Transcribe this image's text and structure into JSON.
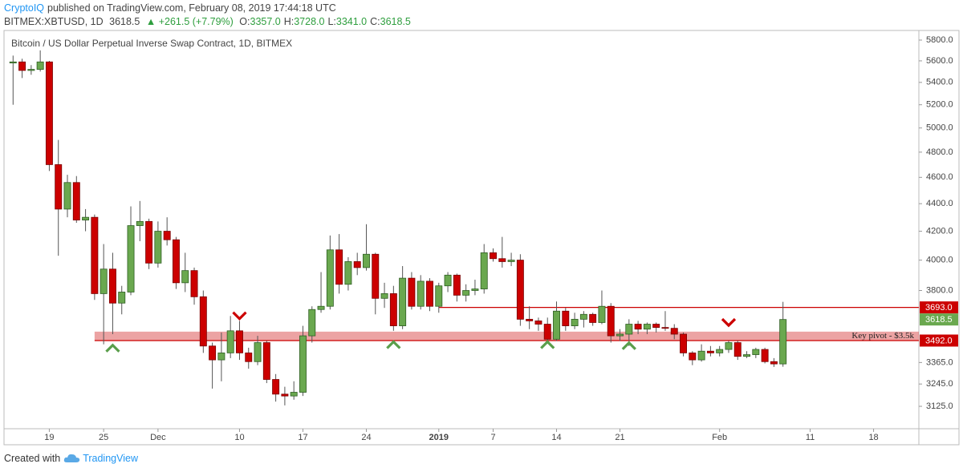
{
  "header": {
    "author": "CryptoIQ",
    "published": "published on TradingView.com, February 08, 2019 17:44:18 UTC",
    "symbol": "BITMEX:XBTUSD, 1D",
    "last": "3618.5",
    "change": "▲ +261.5 (+7.79%)",
    "ohlc": [
      {
        "label": "O:",
        "value": "3357.0"
      },
      {
        "label": "H:",
        "value": "3728.0"
      },
      {
        "label": "L:",
        "value": "3341.0"
      },
      {
        "label": "C:",
        "value": "3618.5"
      }
    ]
  },
  "footer": {
    "text": "Created with",
    "brand": "TradingView"
  },
  "chart_data": {
    "type": "candlestick",
    "title": "Bitcoin / US Dollar Perpetual Inverse Swap Contract, 1D, BITMEX",
    "up_color": "#6aa84f",
    "down_color": "#cc0000",
    "up_border": "#2f5e23",
    "down_border": "#7a0000",
    "log": true,
    "ylim": [
      3009,
      5895
    ],
    "yticks": [
      {
        "value": 3125,
        "label": "3125.0"
      },
      {
        "value": 3245,
        "label": "3245.0"
      },
      {
        "value": 3365,
        "label": "3365.0"
      },
      {
        "value": 3800,
        "label": "3800.0"
      },
      {
        "value": 4000,
        "label": "4000.0"
      },
      {
        "value": 4200,
        "label": "4200.0"
      },
      {
        "value": 4400,
        "label": "4400.0"
      },
      {
        "value": 4600,
        "label": "4600.0"
      },
      {
        "value": 4800,
        "label": "4800.0"
      },
      {
        "value": 5000,
        "label": "5000.0"
      },
      {
        "value": 5200,
        "label": "5200.0"
      },
      {
        "value": 5400,
        "label": "5400.0"
      },
      {
        "value": 5600,
        "label": "5600.0"
      },
      {
        "value": 5800,
        "label": "5800.0"
      }
    ],
    "xlim": [
      "2018-11-14",
      "2019-02-23"
    ],
    "xticks": [
      {
        "value": "2018-11-19",
        "label": "19"
      },
      {
        "value": "2018-11-25",
        "label": "25"
      },
      {
        "value": "2018-12-01",
        "label": "Dec"
      },
      {
        "value": "2018-12-10",
        "label": "10"
      },
      {
        "value": "2018-12-17",
        "label": "17"
      },
      {
        "value": "2018-12-24",
        "label": "24"
      },
      {
        "value": "2019-01-01",
        "label": "2019"
      },
      {
        "value": "2019-01-07",
        "label": "7"
      },
      {
        "value": "2019-01-14",
        "label": "14"
      },
      {
        "value": "2019-01-21",
        "label": "21"
      },
      {
        "value": "2019-02-01",
        "label": "Feb"
      },
      {
        "value": "2019-02-11",
        "label": "11"
      },
      {
        "value": "2019-02-18",
        "label": "18"
      }
    ],
    "x": [
      "2018-11-15",
      "2018-11-16",
      "2018-11-17",
      "2018-11-18",
      "2018-11-19",
      "2018-11-20",
      "2018-11-21",
      "2018-11-22",
      "2018-11-23",
      "2018-11-24",
      "2018-11-25",
      "2018-11-26",
      "2018-11-27",
      "2018-11-28",
      "2018-11-29",
      "2018-11-30",
      "2018-12-01",
      "2018-12-02",
      "2018-12-03",
      "2018-12-04",
      "2018-12-05",
      "2018-12-06",
      "2018-12-07",
      "2018-12-08",
      "2018-12-09",
      "2018-12-10",
      "2018-12-11",
      "2018-12-12",
      "2018-12-13",
      "2018-12-14",
      "2018-12-15",
      "2018-12-16",
      "2018-12-17",
      "2018-12-18",
      "2018-12-19",
      "2018-12-20",
      "2018-12-21",
      "2018-12-22",
      "2018-12-23",
      "2018-12-24",
      "2018-12-25",
      "2018-12-26",
      "2018-12-27",
      "2018-12-28",
      "2018-12-29",
      "2018-12-30",
      "2018-12-31",
      "2019-01-01",
      "2019-01-02",
      "2019-01-03",
      "2019-01-04",
      "2019-01-05",
      "2019-01-06",
      "2019-01-07",
      "2019-01-08",
      "2019-01-09",
      "2019-01-10",
      "2019-01-11",
      "2019-01-12",
      "2019-01-13",
      "2019-01-14",
      "2019-01-15",
      "2019-01-16",
      "2019-01-17",
      "2019-01-18",
      "2019-01-19",
      "2019-01-20",
      "2019-01-21",
      "2019-01-22",
      "2019-01-23",
      "2019-01-24",
      "2019-01-25",
      "2019-01-26",
      "2019-01-27",
      "2019-01-28",
      "2019-01-29",
      "2019-01-30",
      "2019-01-31",
      "2019-02-01",
      "2019-02-02",
      "2019-02-03",
      "2019-02-04",
      "2019-02-05",
      "2019-02-06",
      "2019-02-07",
      "2019-02-08"
    ],
    "open": [
      5580,
      5590,
      5510,
      5520,
      5590,
      4700,
      4360,
      4560,
      4280,
      4300,
      3780,
      3940,
      3720,
      3790,
      4240,
      4270,
      3980,
      4200,
      4140,
      3850,
      3930,
      3760,
      3460,
      3380,
      3420,
      3550,
      3420,
      3370,
      3480,
      3270,
      3190,
      3180,
      3200,
      3520,
      3680,
      3700,
      4070,
      3840,
      3990,
      3950,
      4040,
      3750,
      3780,
      3580,
      3880,
      3700,
      3860,
      3700,
      3830,
      3900,
      3770,
      3800,
      3810,
      4050,
      4010,
      3990,
      4000,
      3620,
      3610,
      3590,
      3500,
      3670,
      3580,
      3620,
      3650,
      3600,
      3700,
      3520,
      3530,
      3590,
      3560,
      3590,
      3570,
      3565,
      3530,
      3420,
      3380,
      3430,
      3420,
      3440,
      3480,
      3400,
      3410,
      3440,
      3370,
      3357
    ],
    "high": [
      5650,
      5620,
      5560,
      5700,
      5600,
      4900,
      4620,
      4610,
      4360,
      4320,
      4110,
      4050,
      3830,
      4380,
      4420,
      4290,
      4270,
      4300,
      4160,
      4050,
      3950,
      3800,
      3480,
      3540,
      3640,
      3610,
      3450,
      3520,
      3490,
      3300,
      3230,
      3260,
      3580,
      3700,
      3920,
      4170,
      4180,
      4020,
      4050,
      4250,
      4050,
      3850,
      3830,
      3960,
      3920,
      3900,
      3880,
      3850,
      3920,
      3910,
      3840,
      3870,
      4110,
      4080,
      4160,
      4050,
      4040,
      3700,
      3630,
      3630,
      3730,
      3690,
      3660,
      3670,
      3660,
      3800,
      3720,
      3560,
      3620,
      3610,
      3600,
      3600,
      3670,
      3590,
      3540,
      3430,
      3470,
      3460,
      3460,
      3490,
      3490,
      3430,
      3450,
      3450,
      3390,
      3728
    ],
    "low": [
      5200,
      5440,
      5470,
      5500,
      4650,
      4030,
      4300,
      4260,
      4200,
      3740,
      3470,
      3530,
      3650,
      3770,
      4130,
      3940,
      3950,
      4100,
      3810,
      3790,
      3710,
      3420,
      3220,
      3260,
      3390,
      3380,
      3330,
      3350,
      3250,
      3150,
      3130,
      3160,
      3180,
      3480,
      3660,
      3680,
      3780,
      3800,
      3900,
      3930,
      3650,
      3690,
      3550,
      3560,
      3680,
      3680,
      3670,
      3660,
      3790,
      3730,
      3730,
      3770,
      3780,
      3990,
      3950,
      3960,
      3580,
      3560,
      3550,
      3480,
      3490,
      3550,
      3560,
      3570,
      3580,
      3590,
      3480,
      3490,
      3460,
      3530,
      3530,
      3540,
      3550,
      3500,
      3400,
      3350,
      3370,
      3400,
      3400,
      3420,
      3380,
      3390,
      3390,
      3360,
      3340,
      3341
    ],
    "close": [
      5590,
      5510,
      5520,
      5590,
      4700,
      4360,
      4560,
      4280,
      4300,
      3780,
      3940,
      3720,
      3790,
      4240,
      4270,
      3980,
      4200,
      4140,
      3850,
      3930,
      3760,
      3460,
      3380,
      3420,
      3550,
      3420,
      3370,
      3480,
      3270,
      3190,
      3180,
      3200,
      3520,
      3680,
      3700,
      4070,
      3840,
      3990,
      3950,
      4040,
      3750,
      3780,
      3580,
      3880,
      3700,
      3860,
      3700,
      3830,
      3900,
      3770,
      3800,
      3810,
      4050,
      4010,
      3990,
      4000,
      3620,
      3610,
      3590,
      3500,
      3670,
      3580,
      3620,
      3650,
      3600,
      3700,
      3520,
      3530,
      3590,
      3560,
      3590,
      3570,
      3565,
      3530,
      3420,
      3380,
      3430,
      3420,
      3440,
      3480,
      3400,
      3410,
      3440,
      3370,
      3357,
      3618.5
    ],
    "price_lines": [
      {
        "value": 3693,
        "label": "3693.0",
        "start": "2019-01-01",
        "color": "#cc0000"
      },
      {
        "value": 3492,
        "label": "3492.0",
        "start": "2018-11-24",
        "color": "#cc0000"
      }
    ],
    "last_price": {
      "value": 3618.5,
      "label": "3618.5",
      "color": "#6aa84f"
    },
    "zone": {
      "low": 3492,
      "high": 3545,
      "start": "2018-11-24",
      "label": "Key pivot - $3.5k",
      "color": "#e06666"
    },
    "markers": [
      {
        "date": "2018-11-26",
        "price": 3446,
        "direction": "up",
        "color": "#5a9e4b"
      },
      {
        "date": "2018-12-27",
        "price": 3466,
        "direction": "up",
        "color": "#5a9e4b"
      },
      {
        "date": "2019-01-13",
        "price": 3466,
        "direction": "up",
        "color": "#5a9e4b"
      },
      {
        "date": "2019-01-22",
        "price": 3460,
        "direction": "up",
        "color": "#5a9e4b"
      },
      {
        "date": "2018-12-10",
        "price": 3643,
        "direction": "down",
        "color": "#cc0000"
      },
      {
        "date": "2019-02-02",
        "price": 3602,
        "direction": "down",
        "color": "#cc0000"
      }
    ]
  }
}
